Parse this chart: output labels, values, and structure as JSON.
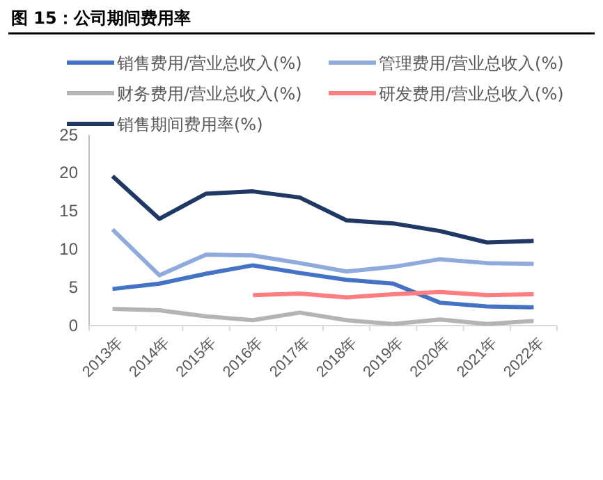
{
  "chart_data": {
    "type": "line",
    "title": "图 15：公司期间费用率",
    "categories": [
      "2013年",
      "2014年",
      "2015年",
      "2016年",
      "2017年",
      "2018年",
      "2019年",
      "2020年",
      "2021年",
      "2022年"
    ],
    "series": [
      {
        "name": "销售费用/营业总收入(%)",
        "color": "#4472c4",
        "values": [
          4.8,
          5.5,
          6.8,
          7.9,
          6.9,
          6.0,
          5.5,
          3.0,
          2.5,
          2.4
        ]
      },
      {
        "name": "管理费用/营业总收入(%)",
        "color": "#8faadc",
        "values": [
          12.6,
          6.6,
          9.3,
          9.2,
          8.2,
          7.1,
          7.7,
          8.7,
          8.2,
          8.1
        ]
      },
      {
        "name": "财务费用/营业总收入(%)",
        "color": "#b4b4b4",
        "values": [
          2.2,
          2.0,
          1.2,
          0.7,
          1.7,
          0.7,
          0.2,
          0.8,
          0.2,
          0.6
        ]
      },
      {
        "name": "研发费用/营业总收入(%)",
        "color": "#ff7c80",
        "values": [
          null,
          null,
          null,
          4.0,
          4.2,
          3.7,
          4.1,
          4.4,
          4.0,
          4.1
        ]
      },
      {
        "name": "销售期间费用率(%)",
        "color": "#1f3864",
        "values": [
          19.6,
          14.0,
          17.3,
          17.6,
          16.8,
          13.8,
          13.4,
          12.4,
          10.9,
          11.1
        ]
      }
    ],
    "ylim": [
      0,
      25
    ],
    "yticks": [
      0,
      5,
      10,
      15,
      20,
      25
    ],
    "grid": false,
    "legend": "top",
    "marker": "none",
    "line_style": "solid"
  }
}
